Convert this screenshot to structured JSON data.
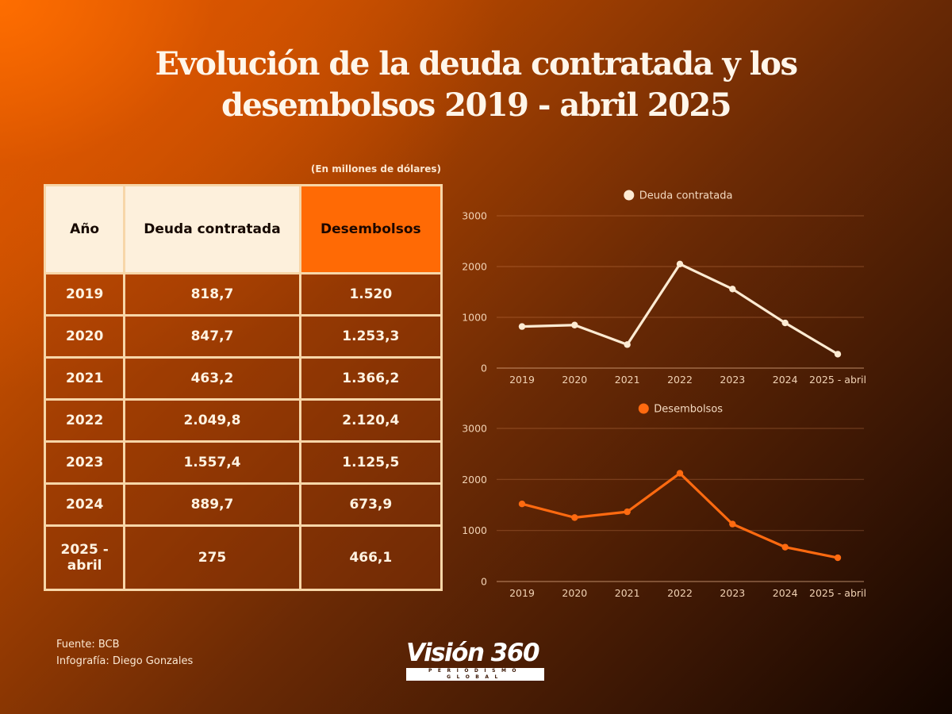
{
  "title": {
    "line1": "Evolución de la deuda contratada y los",
    "line2": "desembolsos 2019 - abril 2025"
  },
  "units_note": "(En millones de dólares)",
  "table": {
    "headers": [
      "Año",
      "Deuda contratada",
      "Desembolsos"
    ],
    "rows": [
      {
        "year": "2019",
        "deuda": "818,7",
        "desembolsos": "1.520"
      },
      {
        "year": "2020",
        "deuda": "847,7",
        "desembolsos": "1.253,3"
      },
      {
        "year": "2021",
        "deuda": "463,2",
        "desembolsos": "1.366,2"
      },
      {
        "year": "2022",
        "deuda": "2.049,8",
        "desembolsos": "2.120,4"
      },
      {
        "year": "2023",
        "deuda": "1.557,4",
        "desembolsos": "1.125,5"
      },
      {
        "year": "2024",
        "deuda": "889,7",
        "desembolsos": "673,9"
      },
      {
        "year_line1": "2025 -",
        "year_line2": "abril",
        "deuda": "275",
        "desembolsos": "466,1"
      }
    ]
  },
  "chart_data": [
    {
      "type": "line",
      "title": "",
      "legend": "Deuda contratada",
      "legend_placement": "top-center",
      "categories": [
        "2019",
        "2020",
        "2021",
        "2022",
        "2023",
        "2024",
        "2025 - abril"
      ],
      "series": [
        {
          "name": "Deuda contratada",
          "values": [
            818.7,
            847.7,
            463.2,
            2049.8,
            1557.4,
            889.7,
            275
          ],
          "color": "#fdebd3"
        }
      ],
      "xlabel": "",
      "ylabel": "",
      "ylim": [
        0,
        3000
      ],
      "yticks": [
        0,
        1000,
        2000,
        3000
      ],
      "grid": true
    },
    {
      "type": "line",
      "title": "",
      "legend": "Desembolsos",
      "legend_placement": "top-center",
      "categories": [
        "2019",
        "2020",
        "2021",
        "2022",
        "2023",
        "2024",
        "2025 - abril"
      ],
      "series": [
        {
          "name": "Desembolsos",
          "values": [
            1520,
            1253.3,
            1366.2,
            2120.4,
            1125.5,
            673.9,
            466.1
          ],
          "color": "#ff6a10"
        }
      ],
      "xlabel": "",
      "ylabel": "",
      "ylim": [
        0,
        3000
      ],
      "yticks": [
        0,
        1000,
        2000,
        3000
      ],
      "grid": true
    }
  ],
  "footer": {
    "source": "Fuente: BCB",
    "credit": "Infografía: Diego Gonzales"
  },
  "logo": {
    "name": "Visión 360",
    "tagline": "PERIODISMO GLOBAL"
  },
  "colors": {
    "header_light": "#fdf0dc",
    "header_accent": "#ff6a05",
    "grid_border": "#f7d6a8"
  }
}
